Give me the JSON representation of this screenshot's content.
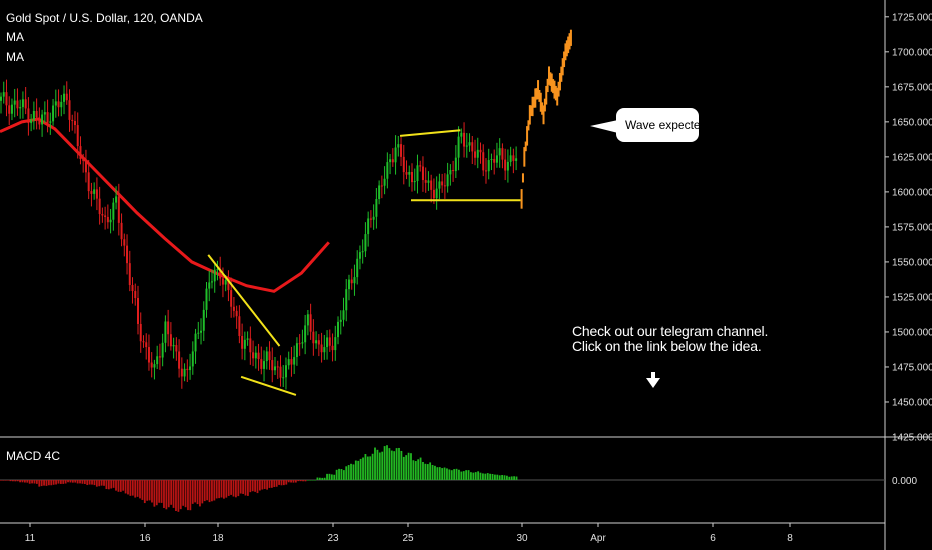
{
  "header": {
    "title": "Gold Spot / U.S. Dollar, 120, OANDA",
    "indicator_1": "MA",
    "indicator_2": "MA"
  },
  "macd_pane": {
    "label": "MACD 4C"
  },
  "callout": {
    "text": "Wave expected"
  },
  "promo": {
    "line_1": "Check out our telegram channel.",
    "line_2": "Click on the link below the idea."
  },
  "colors": {
    "background": "#000000",
    "candle_up": "#1fbf2a",
    "candle_down": "#e01e1e",
    "moving_average": "#e8191b",
    "trendlines": "#f2e21a",
    "projection": "#f7931e",
    "macd_positive": "#22b822",
    "macd_negative": "#b81414"
  },
  "chart_data": [
    {
      "type": "candlestick",
      "title": "Gold Spot / U.S. Dollar, 120, OANDA",
      "y_ticks": [
        "1725.000",
        "1700.000",
        "1675.000",
        "1650.000",
        "1625.000",
        "1600.000",
        "1575.000",
        "1550.000",
        "1525.000",
        "1500.000",
        "1475.000",
        "1450.000",
        "1425.000"
      ],
      "ylim": [
        1425,
        1737
      ],
      "x_ticks": [
        "11",
        "16",
        "18",
        "23",
        "25",
        "30",
        "Apr",
        "6",
        "8"
      ],
      "price_path": [
        [
          0,
          1665
        ],
        [
          8,
          1660
        ],
        [
          14,
          1650
        ],
        [
          20,
          1660
        ],
        [
          24,
          1668
        ],
        [
          28,
          1632
        ],
        [
          34,
          1595
        ],
        [
          38,
          1580
        ],
        [
          42,
          1590
        ],
        [
          46,
          1550
        ],
        [
          50,
          1505
        ],
        [
          56,
          1470
        ],
        [
          60,
          1505
        ],
        [
          64,
          1480
        ],
        [
          68,
          1470
        ],
        [
          72,
          1500
        ],
        [
          76,
          1535
        ],
        [
          80,
          1545
        ],
        [
          84,
          1520
        ],
        [
          88,
          1495
        ],
        [
          92,
          1483
        ],
        [
          96,
          1480
        ],
        [
          100,
          1475
        ],
        [
          104,
          1470
        ],
        [
          108,
          1490
        ],
        [
          112,
          1505
        ],
        [
          116,
          1490
        ],
        [
          120,
          1488
        ],
        [
          124,
          1510
        ],
        [
          128,
          1540
        ],
        [
          132,
          1560
        ],
        [
          136,
          1590
        ],
        [
          140,
          1610
        ],
        [
          144,
          1635
        ],
        [
          148,
          1610
        ],
        [
          152,
          1615
        ],
        [
          156,
          1605
        ],
        [
          160,
          1600
        ],
        [
          164,
          1615
        ],
        [
          168,
          1638
        ],
        [
          172,
          1632
        ],
        [
          176,
          1618
        ],
        [
          180,
          1625
        ],
        [
          184,
          1622
        ],
        [
          188,
          1625
        ]
      ],
      "projection": [
        [
          190,
          1595
        ],
        [
          191,
          1625
        ],
        [
          193,
          1655
        ],
        [
          196,
          1673
        ],
        [
          198,
          1655
        ],
        [
          200,
          1683
        ],
        [
          203,
          1668
        ],
        [
          206,
          1700
        ],
        [
          208,
          1710
        ]
      ],
      "moving_average": [
        [
          0,
          1643
        ],
        [
          8,
          1650
        ],
        [
          14,
          1652
        ],
        [
          20,
          1645
        ],
        [
          30,
          1625
        ],
        [
          40,
          1605
        ],
        [
          50,
          1585
        ],
        [
          60,
          1567
        ],
        [
          70,
          1550
        ],
        [
          80,
          1541
        ],
        [
          90,
          1533
        ],
        [
          100,
          1529
        ],
        [
          110,
          1542
        ],
        [
          120,
          1564
        ]
      ],
      "trendlines": [
        {
          "from": [
            76,
            1555
          ],
          "to": [
            102,
            1490
          ]
        },
        {
          "from": [
            88,
            1468
          ],
          "to": [
            108,
            1455
          ]
        },
        {
          "from": [
            146,
            1640
          ],
          "to": [
            168,
            1644
          ]
        },
        {
          "from": [
            150,
            1594
          ],
          "to": [
            190,
            1594
          ]
        }
      ]
    },
    {
      "type": "bar",
      "title": "MACD 4C",
      "y_ticks": [
        "0.000"
      ],
      "ylim": [
        -30,
        32
      ],
      "values": [
        -0.5,
        -1,
        -2,
        -3,
        -5,
        -4,
        -3,
        -2,
        -3,
        -4,
        -5,
        -7,
        -9,
        -12,
        -15,
        -18,
        -20,
        -22,
        -24,
        -23,
        -20,
        -18,
        -16,
        -14,
        -13,
        -12,
        -10,
        -8,
        -6,
        -4,
        -2,
        -1,
        0,
        2,
        5,
        9,
        13,
        18,
        22,
        26,
        28,
        26,
        22,
        18,
        15,
        12,
        10,
        9,
        8,
        7,
        6,
        5,
        4,
        3
      ]
    }
  ]
}
